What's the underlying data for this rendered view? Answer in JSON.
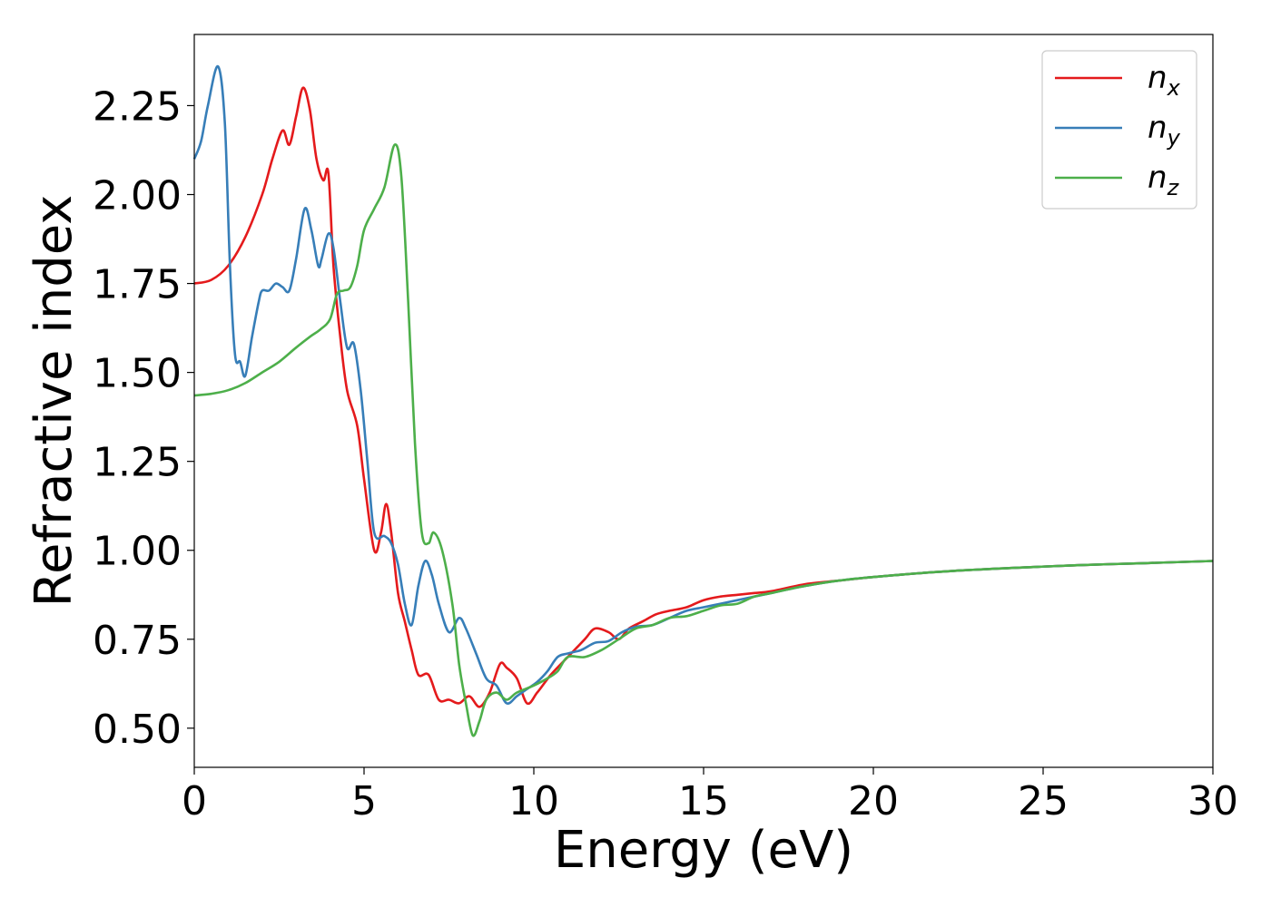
{
  "chart_data": {
    "type": "line",
    "title": "",
    "xlabel": "Energy (eV)",
    "ylabel": "Refractive index",
    "xlim": [
      0,
      30
    ],
    "ylim": [
      0.39,
      2.45
    ],
    "xticks": [
      0,
      5,
      10,
      15,
      20,
      25,
      30
    ],
    "xtick_labels": [
      "0",
      "5",
      "10",
      "15",
      "20",
      "25",
      "30"
    ],
    "yticks": [
      0.5,
      0.75,
      1.0,
      1.25,
      1.5,
      1.75,
      2.0,
      2.25
    ],
    "ytick_labels": [
      "0.50",
      "0.75",
      "1.00",
      "1.25",
      "1.50",
      "1.75",
      "2.00",
      "2.25"
    ],
    "grid": false,
    "legend_position": "top-right",
    "series": [
      {
        "name": "n_x",
        "label_main": "n",
        "label_sub": "x",
        "color": "#e41a1c",
        "points": [
          [
            0,
            1.75
          ],
          [
            0.5,
            1.76
          ],
          [
            1,
            1.8
          ],
          [
            1.5,
            1.88
          ],
          [
            2,
            2.0
          ],
          [
            2.3,
            2.1
          ],
          [
            2.6,
            2.18
          ],
          [
            2.8,
            2.14
          ],
          [
            3.0,
            2.22
          ],
          [
            3.2,
            2.3
          ],
          [
            3.4,
            2.24
          ],
          [
            3.6,
            2.1
          ],
          [
            3.8,
            2.04
          ],
          [
            3.95,
            2.06
          ],
          [
            4.1,
            1.8
          ],
          [
            4.3,
            1.6
          ],
          [
            4.5,
            1.45
          ],
          [
            4.8,
            1.35
          ],
          [
            5.0,
            1.2
          ],
          [
            5.3,
            1.0
          ],
          [
            5.5,
            1.05
          ],
          [
            5.65,
            1.13
          ],
          [
            5.8,
            1.05
          ],
          [
            6.0,
            0.88
          ],
          [
            6.2,
            0.8
          ],
          [
            6.4,
            0.72
          ],
          [
            6.6,
            0.65
          ],
          [
            6.9,
            0.65
          ],
          [
            7.2,
            0.58
          ],
          [
            7.5,
            0.58
          ],
          [
            7.8,
            0.57
          ],
          [
            8.1,
            0.59
          ],
          [
            8.4,
            0.56
          ],
          [
            8.7,
            0.6
          ],
          [
            9.0,
            0.68
          ],
          [
            9.2,
            0.67
          ],
          [
            9.5,
            0.64
          ],
          [
            9.8,
            0.57
          ],
          [
            10.1,
            0.6
          ],
          [
            10.5,
            0.65
          ],
          [
            11.0,
            0.7
          ],
          [
            11.5,
            0.75
          ],
          [
            11.8,
            0.78
          ],
          [
            12.2,
            0.77
          ],
          [
            12.5,
            0.75
          ],
          [
            12.8,
            0.78
          ],
          [
            13.2,
            0.8
          ],
          [
            13.6,
            0.82
          ],
          [
            14.0,
            0.83
          ],
          [
            14.5,
            0.84
          ],
          [
            15.0,
            0.86
          ],
          [
            15.5,
            0.87
          ],
          [
            16,
            0.875
          ],
          [
            16.5,
            0.88
          ],
          [
            17,
            0.885
          ],
          [
            18,
            0.905
          ],
          [
            19,
            0.915
          ],
          [
            20,
            0.925
          ],
          [
            22,
            0.94
          ],
          [
            24,
            0.95
          ],
          [
            26,
            0.958
          ],
          [
            28,
            0.964
          ],
          [
            30,
            0.97
          ]
        ]
      },
      {
        "name": "n_y",
        "label_main": "n",
        "label_sub": "y",
        "color": "#377eb8",
        "points": [
          [
            0,
            2.1
          ],
          [
            0.2,
            2.15
          ],
          [
            0.4,
            2.25
          ],
          [
            0.7,
            2.36
          ],
          [
            0.9,
            2.2
          ],
          [
            1.05,
            1.8
          ],
          [
            1.2,
            1.55
          ],
          [
            1.35,
            1.53
          ],
          [
            1.5,
            1.49
          ],
          [
            1.7,
            1.6
          ],
          [
            1.9,
            1.7
          ],
          [
            2.0,
            1.73
          ],
          [
            2.2,
            1.73
          ],
          [
            2.4,
            1.75
          ],
          [
            2.6,
            1.74
          ],
          [
            2.8,
            1.73
          ],
          [
            3.0,
            1.82
          ],
          [
            3.25,
            1.96
          ],
          [
            3.45,
            1.9
          ],
          [
            3.65,
            1.8
          ],
          [
            3.75,
            1.82
          ],
          [
            3.95,
            1.89
          ],
          [
            4.1,
            1.85
          ],
          [
            4.3,
            1.7
          ],
          [
            4.5,
            1.57
          ],
          [
            4.7,
            1.58
          ],
          [
            4.9,
            1.45
          ],
          [
            5.1,
            1.25
          ],
          [
            5.3,
            1.05
          ],
          [
            5.6,
            1.04
          ],
          [
            5.8,
            1.02
          ],
          [
            6.0,
            0.96
          ],
          [
            6.2,
            0.85
          ],
          [
            6.4,
            0.79
          ],
          [
            6.6,
            0.9
          ],
          [
            6.8,
            0.97
          ],
          [
            7.0,
            0.93
          ],
          [
            7.2,
            0.85
          ],
          [
            7.5,
            0.77
          ],
          [
            7.8,
            0.81
          ],
          [
            8.0,
            0.78
          ],
          [
            8.3,
            0.71
          ],
          [
            8.6,
            0.64
          ],
          [
            8.9,
            0.62
          ],
          [
            9.2,
            0.57
          ],
          [
            9.5,
            0.59
          ],
          [
            9.8,
            0.61
          ],
          [
            10.1,
            0.63
          ],
          [
            10.4,
            0.66
          ],
          [
            10.7,
            0.7
          ],
          [
            11.0,
            0.71
          ],
          [
            11.4,
            0.72
          ],
          [
            11.8,
            0.74
          ],
          [
            12.2,
            0.745
          ],
          [
            12.6,
            0.77
          ],
          [
            13.0,
            0.785
          ],
          [
            13.5,
            0.79
          ],
          [
            14,
            0.81
          ],
          [
            14.5,
            0.83
          ],
          [
            15,
            0.84
          ],
          [
            15.5,
            0.85
          ],
          [
            16,
            0.86
          ],
          [
            16.5,
            0.87
          ],
          [
            17,
            0.88
          ],
          [
            18,
            0.9
          ],
          [
            19,
            0.915
          ],
          [
            20,
            0.925
          ],
          [
            22,
            0.94
          ],
          [
            24,
            0.95
          ],
          [
            26,
            0.958
          ],
          [
            28,
            0.964
          ],
          [
            30,
            0.97
          ]
        ]
      },
      {
        "name": "n_z",
        "label_main": "n",
        "label_sub": "z",
        "color": "#4daf4a",
        "points": [
          [
            0,
            1.435
          ],
          [
            0.5,
            1.44
          ],
          [
            1,
            1.45
          ],
          [
            1.5,
            1.47
          ],
          [
            2,
            1.5
          ],
          [
            2.5,
            1.53
          ],
          [
            3.0,
            1.57
          ],
          [
            3.4,
            1.6
          ],
          [
            3.7,
            1.62
          ],
          [
            4.0,
            1.65
          ],
          [
            4.2,
            1.72
          ],
          [
            4.4,
            1.73
          ],
          [
            4.6,
            1.74
          ],
          [
            4.8,
            1.8
          ],
          [
            5.0,
            1.9
          ],
          [
            5.3,
            1.96
          ],
          [
            5.6,
            2.02
          ],
          [
            5.9,
            2.14
          ],
          [
            6.1,
            2.05
          ],
          [
            6.3,
            1.7
          ],
          [
            6.5,
            1.3
          ],
          [
            6.7,
            1.05
          ],
          [
            6.9,
            1.02
          ],
          [
            7.05,
            1.05
          ],
          [
            7.3,
            1.0
          ],
          [
            7.6,
            0.85
          ],
          [
            7.8,
            0.68
          ],
          [
            8.0,
            0.57
          ],
          [
            8.2,
            0.48
          ],
          [
            8.4,
            0.52
          ],
          [
            8.6,
            0.58
          ],
          [
            8.9,
            0.6
          ],
          [
            9.2,
            0.58
          ],
          [
            9.5,
            0.6
          ],
          [
            10.0,
            0.62
          ],
          [
            10.4,
            0.64
          ],
          [
            10.7,
            0.66
          ],
          [
            11.0,
            0.7
          ],
          [
            11.5,
            0.7
          ],
          [
            12.0,
            0.72
          ],
          [
            12.5,
            0.75
          ],
          [
            13.0,
            0.78
          ],
          [
            13.5,
            0.79
          ],
          [
            14,
            0.81
          ],
          [
            14.5,
            0.815
          ],
          [
            15,
            0.83
          ],
          [
            15.5,
            0.845
          ],
          [
            16,
            0.85
          ],
          [
            16.5,
            0.87
          ],
          [
            17,
            0.88
          ],
          [
            18,
            0.9
          ],
          [
            19,
            0.915
          ],
          [
            20,
            0.925
          ],
          [
            22,
            0.94
          ],
          [
            24,
            0.95
          ],
          [
            26,
            0.958
          ],
          [
            28,
            0.964
          ],
          [
            30,
            0.97
          ]
        ]
      }
    ]
  }
}
